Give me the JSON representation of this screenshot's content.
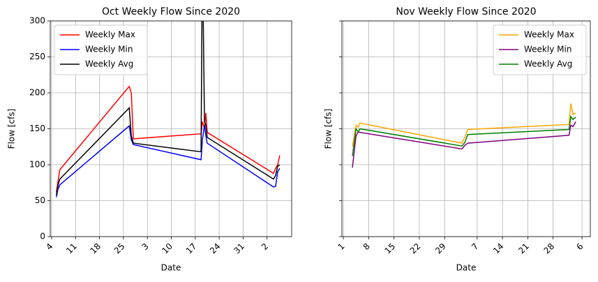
{
  "chart_data": [
    {
      "type": "line",
      "title": "Oct Weekly Flow Since 2020",
      "xlabel": "Date",
      "ylabel": "Flow [cfs]",
      "x": [
        1.4,
        1.8,
        2.4,
        22.7,
        23.3,
        23.9,
        43.7,
        44.1,
        44.7,
        45.1,
        45.5,
        64.9,
        65.5,
        66.1,
        66.7
      ],
      "series": [
        {
          "name": "Weekly Max",
          "color": "red",
          "values": [
            62,
            75,
            93,
            209,
            200,
            136,
            143,
            160,
            150,
            172,
            145,
            88,
            95,
            100,
            113
          ]
        },
        {
          "name": "Weekly Min",
          "color": "blue",
          "values": [
            55,
            65,
            72,
            154,
            135,
            128,
            107,
            135,
            155,
            140,
            130,
            69,
            70,
            90,
            95
          ]
        },
        {
          "name": "Weekly Avg",
          "color": "black",
          "values": [
            58,
            70,
            80,
            179,
            140,
            130,
            118,
            400,
            160,
            155,
            138,
            80,
            85,
            98,
            100
          ]
        }
      ],
      "xlim": [
        -0.4,
        70.2
      ],
      "ylim": [
        0,
        300
      ],
      "xticks": [
        {
          "value": 0,
          "label": "4"
        },
        {
          "value": 7,
          "label": "11"
        },
        {
          "value": 14,
          "label": "18"
        },
        {
          "value": 21,
          "label": "25"
        },
        {
          "value": 28,
          "label": "3"
        },
        {
          "value": 35,
          "label": "10"
        },
        {
          "value": 42,
          "label": "17"
        },
        {
          "value": 49,
          "label": "24"
        },
        {
          "value": 56,
          "label": "31"
        },
        {
          "value": 63,
          "label": "2"
        }
      ],
      "yticks": [
        0,
        50,
        100,
        150,
        200,
        250,
        300
      ],
      "ytick_labels": true,
      "grid": true,
      "legend": "upper left"
    },
    {
      "type": "line",
      "title": "Nov Weekly Flow Since 2020",
      "xlabel": "Date",
      "ylabel": "Flow [cfs]",
      "x": [
        2.5,
        3.5,
        4.1,
        4.6,
        32.8,
        33.6,
        34.4,
        62.4,
        62.9,
        63.5,
        64.3
      ],
      "series": [
        {
          "name": "Weekly Max",
          "color": "orange",
          "values": [
            125,
            155,
            152,
            158,
            130,
            138,
            149,
            156,
            185,
            170,
            172
          ]
        },
        {
          "name": "Weekly Min",
          "color": "purple",
          "values": [
            96,
            140,
            146,
            145,
            122,
            127,
            130,
            141,
            155,
            153,
            160
          ]
        },
        {
          "name": "Weekly Avg",
          "color": "green",
          "values": [
            112,
            150,
            146,
            150,
            126,
            131,
            142,
            149,
            167,
            163,
            166
          ]
        }
      ],
      "xlim": [
        -0.4,
        68.3
      ],
      "ylim": [
        0,
        300
      ],
      "xticks": [
        {
          "value": 0,
          "label": "1"
        },
        {
          "value": 7,
          "label": "8"
        },
        {
          "value": 14,
          "label": "15"
        },
        {
          "value": 21,
          "label": "22"
        },
        {
          "value": 28,
          "label": "29"
        },
        {
          "value": 37,
          "label": "7"
        },
        {
          "value": 44,
          "label": "14"
        },
        {
          "value": 51,
          "label": "21"
        },
        {
          "value": 58,
          "label": "28"
        },
        {
          "value": 66,
          "label": "6"
        }
      ],
      "yticks": [
        0,
        50,
        100,
        150,
        200,
        250,
        300
      ],
      "ytick_labels": false,
      "grid": true,
      "legend": "upper right"
    }
  ]
}
